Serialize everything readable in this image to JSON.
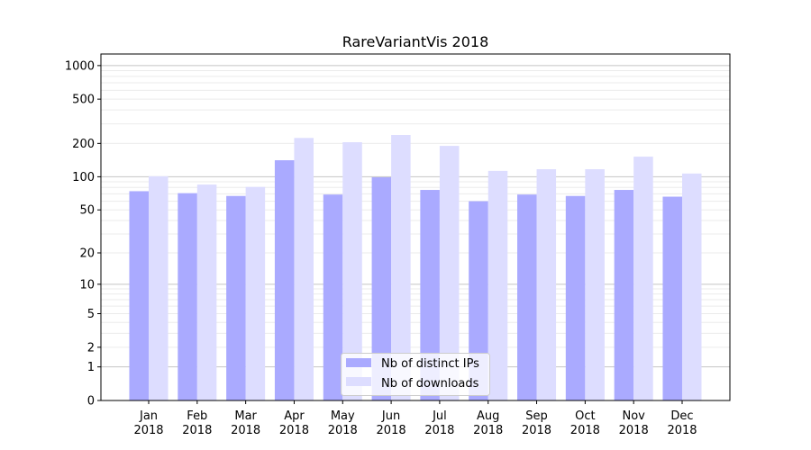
{
  "chart_data": {
    "type": "bar",
    "title": "RareVariantVis 2018",
    "xlabel": "",
    "ylabel": "",
    "yscale": "symlog (log10(1+y))",
    "ylim": [
      0,
      1270
    ],
    "yticks": [
      0,
      1,
      2,
      5,
      10,
      20,
      50,
      100,
      200,
      500,
      1000
    ],
    "grid": "on (major and minor, y axis)",
    "legend_position": "lower-center",
    "categories": [
      [
        "Jan",
        "2018"
      ],
      [
        "Feb",
        "2018"
      ],
      [
        "Mar",
        "2018"
      ],
      [
        "Apr",
        "2018"
      ],
      [
        "May",
        "2018"
      ],
      [
        "Jun",
        "2018"
      ],
      [
        "Jul",
        "2018"
      ],
      [
        "Aug",
        "2018"
      ],
      [
        "Sep",
        "2018"
      ],
      [
        "Oct",
        "2018"
      ],
      [
        "Nov",
        "2018"
      ],
      [
        "Dec",
        "2018"
      ]
    ],
    "series": [
      {
        "name": "Nb of distinct IPs",
        "color": "#aaaaff",
        "values": [
          74,
          71,
          67,
          141,
          69,
          99,
          76,
          60,
          69,
          67,
          76,
          66
        ]
      },
      {
        "name": "Nb of downloads",
        "color": "#ddddff",
        "values": [
          101,
          85,
          81,
          224,
          205,
          238,
          190,
          113,
          117,
          117,
          152,
          107
        ]
      }
    ]
  }
}
